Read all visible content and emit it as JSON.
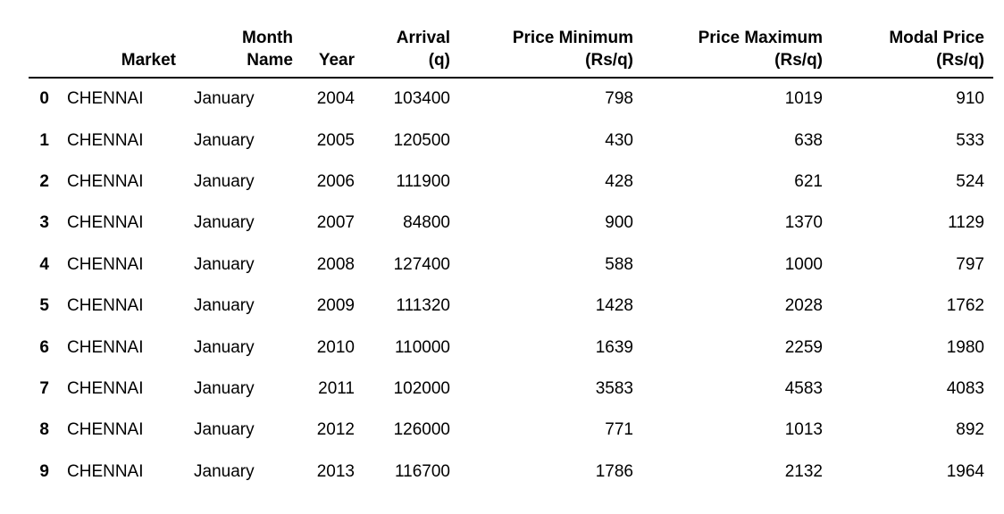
{
  "table": {
    "index_header": "",
    "columns": [
      [
        "Market"
      ],
      [
        "Month",
        "Name"
      ],
      [
        "Year"
      ],
      [
        "Arrival",
        "(q)"
      ],
      [
        "Price Minimum",
        "(Rs/q)"
      ],
      [
        "Price Maximum",
        "(Rs/q)"
      ],
      [
        "Modal Price",
        "(Rs/q)"
      ]
    ],
    "rows": [
      {
        "index": "0",
        "cells": [
          "CHENNAI",
          "January",
          "2004",
          "103400",
          "798",
          "1019",
          "910"
        ]
      },
      {
        "index": "1",
        "cells": [
          "CHENNAI",
          "January",
          "2005",
          "120500",
          "430",
          "638",
          "533"
        ]
      },
      {
        "index": "2",
        "cells": [
          "CHENNAI",
          "January",
          "2006",
          "111900",
          "428",
          "621",
          "524"
        ]
      },
      {
        "index": "3",
        "cells": [
          "CHENNAI",
          "January",
          "2007",
          "84800",
          "900",
          "1370",
          "1129"
        ]
      },
      {
        "index": "4",
        "cells": [
          "CHENNAI",
          "January",
          "2008",
          "127400",
          "588",
          "1000",
          "797"
        ]
      },
      {
        "index": "5",
        "cells": [
          "CHENNAI",
          "January",
          "2009",
          "111320",
          "1428",
          "2028",
          "1762"
        ]
      },
      {
        "index": "6",
        "cells": [
          "CHENNAI",
          "January",
          "2010",
          "110000",
          "1639",
          "2259",
          "1980"
        ]
      },
      {
        "index": "7",
        "cells": [
          "CHENNAI",
          "January",
          "2011",
          "102000",
          "3583",
          "4583",
          "4083"
        ]
      },
      {
        "index": "8",
        "cells": [
          "CHENNAI",
          "January",
          "2012",
          "126000",
          "771",
          "1013",
          "892"
        ]
      },
      {
        "index": "9",
        "cells": [
          "CHENNAI",
          "January",
          "2013",
          "116700",
          "1786",
          "2132",
          "1964"
        ]
      }
    ]
  }
}
